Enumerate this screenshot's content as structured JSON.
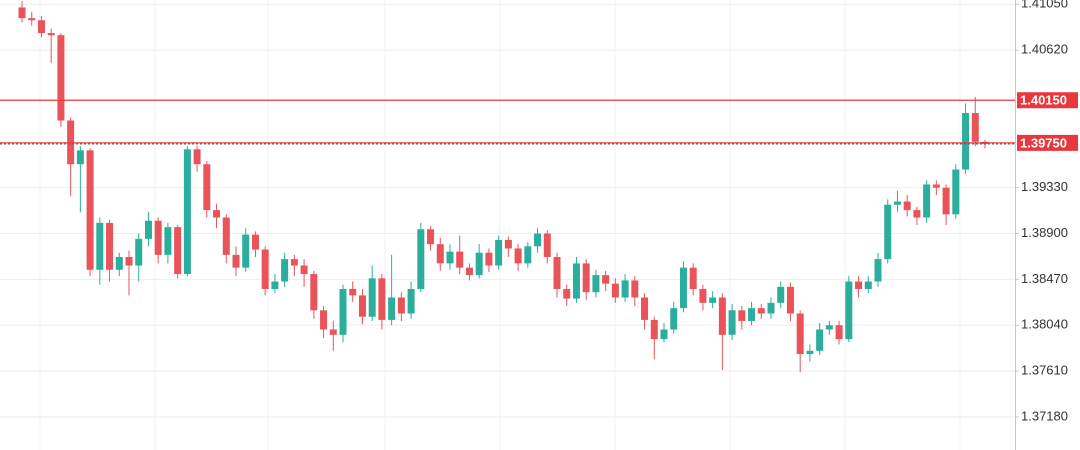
{
  "chart_data": {
    "type": "candlestick",
    "up_color": "#2bae9c",
    "down_color": "#e9545a",
    "level_color": "#e8383d",
    "grid": true,
    "ylim": [
      1.3687,
      1.4109
    ],
    "yticks": [
      {
        "value": 1.4105,
        "label": "1.41050"
      },
      {
        "value": 1.4062,
        "label": "1.40620"
      },
      {
        "value": 1.3933,
        "label": "1.39330"
      },
      {
        "value": 1.389,
        "label": "1.38900"
      },
      {
        "value": 1.3847,
        "label": "1.38470"
      },
      {
        "value": 1.3804,
        "label": "1.38040"
      },
      {
        "value": 1.3761,
        "label": "1.37610"
      },
      {
        "value": 1.3718,
        "label": "1.37180"
      }
    ],
    "levels": [
      {
        "value": 1.4015,
        "label": "1.40150"
      },
      {
        "value": 1.3975,
        "label": "1.39750"
      }
    ],
    "open": [
      1.4102,
      1.4092,
      1.409,
      1.4078,
      1.4076,
      1.3996,
      1.3955,
      1.3968,
      1.3856,
      1.39,
      1.3856,
      1.3868,
      1.386,
      1.3885,
      1.3902,
      1.387,
      1.3896,
      1.3852,
      1.3969,
      1.3955,
      1.3912,
      1.3905,
      1.387,
      1.3858,
      1.3889,
      1.3875,
      1.3838,
      1.3845,
      1.3866,
      1.386,
      1.3852,
      1.3818,
      1.38,
      1.3795,
      1.3838,
      1.3832,
      1.3812,
      1.3848,
      1.3809,
      1.383,
      1.3815,
      1.3838,
      1.3894,
      1.388,
      1.3862,
      1.3873,
      1.3858,
      1.3851,
      1.3872,
      1.386,
      1.3884,
      1.3876,
      1.3862,
      1.3878,
      1.389,
      1.3868,
      1.3838,
      1.3829,
      1.3862,
      1.3835,
      1.3851,
      1.3843,
      1.383,
      1.3846,
      1.383,
      1.3809,
      1.3791,
      1.38,
      1.382,
      1.3858,
      1.3838,
      1.3825,
      1.383,
      1.3795,
      1.3818,
      1.3808,
      1.382,
      1.3815,
      1.3825,
      1.384,
      1.3815,
      1.3777,
      1.378,
      1.38,
      1.3804,
      1.3791,
      1.3845,
      1.3838,
      1.3845,
      1.3866,
      1.3917,
      1.392,
      1.3912,
      1.3905,
      1.3936,
      1.3933,
      1.3908,
      1.395,
      1.4003,
      1.3976
    ],
    "high": [
      1.4108,
      1.4098,
      1.4094,
      1.4082,
      1.4078,
      1.3999,
      1.3972,
      1.397,
      1.3905,
      1.3903,
      1.3872,
      1.3874,
      1.389,
      1.391,
      1.3905,
      1.39,
      1.3898,
      1.3972,
      1.3972,
      1.3958,
      1.3918,
      1.3908,
      1.3878,
      1.3895,
      1.3892,
      1.3878,
      1.3852,
      1.3872,
      1.387,
      1.3866,
      1.3855,
      1.3822,
      1.3808,
      1.3842,
      1.3845,
      1.3838,
      1.386,
      1.3852,
      1.387,
      1.3835,
      1.3845,
      1.39,
      1.3897,
      1.3886,
      1.388,
      1.3888,
      1.3862,
      1.388,
      1.3876,
      1.3888,
      1.3887,
      1.388,
      1.3882,
      1.3895,
      1.3893,
      1.3872,
      1.3842,
      1.3868,
      1.3866,
      1.3856,
      1.3855,
      1.3848,
      1.3852,
      1.385,
      1.3834,
      1.3812,
      1.3806,
      1.3826,
      1.3864,
      1.3862,
      1.3842,
      1.3836,
      1.3834,
      1.3824,
      1.3822,
      1.3826,
      1.3824,
      1.383,
      1.3845,
      1.3844,
      1.3818,
      1.3786,
      1.3806,
      1.3808,
      1.3808,
      1.385,
      1.385,
      1.385,
      1.3872,
      1.3922,
      1.393,
      1.3926,
      1.3915,
      1.394,
      1.394,
      1.3936,
      1.3955,
      1.4012,
      1.4018,
      1.3978
    ],
    "low": [
      1.4088,
      1.4085,
      1.4074,
      1.405,
      1.399,
      1.3925,
      1.391,
      1.385,
      1.3842,
      1.3845,
      1.385,
      1.3832,
      1.3845,
      1.3878,
      1.3862,
      1.3862,
      1.3848,
      1.385,
      1.3948,
      1.3905,
      1.3895,
      1.3862,
      1.385,
      1.3854,
      1.3868,
      1.3832,
      1.3834,
      1.384,
      1.385,
      1.384,
      1.381,
      1.3792,
      1.378,
      1.3788,
      1.3826,
      1.3805,
      1.3808,
      1.38,
      1.3804,
      1.3808,
      1.381,
      1.3835,
      1.3874,
      1.3855,
      1.3856,
      1.3852,
      1.3846,
      1.3848,
      1.3854,
      1.3856,
      1.3868,
      1.3855,
      1.3858,
      1.3872,
      1.3862,
      1.383,
      1.3822,
      1.3825,
      1.3828,
      1.383,
      1.3836,
      1.3825,
      1.3826,
      1.3822,
      1.38,
      1.3772,
      1.3788,
      1.3796,
      1.3816,
      1.3832,
      1.3818,
      1.382,
      1.3762,
      1.379,
      1.38,
      1.3804,
      1.381,
      1.381,
      1.382,
      1.3808,
      1.376,
      1.377,
      1.3776,
      1.3795,
      1.3786,
      1.3788,
      1.383,
      1.3834,
      1.384,
      1.3862,
      1.391,
      1.3906,
      1.3898,
      1.39,
      1.3926,
      1.3898,
      1.3904,
      1.3946,
      1.3972,
      1.397
    ],
    "close": [
      1.4092,
      1.409,
      1.4078,
      1.4076,
      1.3996,
      1.3955,
      1.3968,
      1.3856,
      1.39,
      1.3856,
      1.3868,
      1.386,
      1.3885,
      1.3902,
      1.387,
      1.3896,
      1.3852,
      1.3969,
      1.3955,
      1.3912,
      1.3905,
      1.387,
      1.3858,
      1.3889,
      1.3875,
      1.3838,
      1.3845,
      1.3866,
      1.386,
      1.3852,
      1.3818,
      1.38,
      1.3795,
      1.3838,
      1.3832,
      1.3812,
      1.3848,
      1.3809,
      1.383,
      1.3815,
      1.3838,
      1.3894,
      1.388,
      1.3862,
      1.3873,
      1.3858,
      1.3851,
      1.3872,
      1.386,
      1.3884,
      1.3876,
      1.3862,
      1.3878,
      1.389,
      1.3868,
      1.3838,
      1.3829,
      1.3862,
      1.3835,
      1.3851,
      1.3843,
      1.383,
      1.3846,
      1.383,
      1.3809,
      1.3791,
      1.38,
      1.382,
      1.3858,
      1.3838,
      1.3825,
      1.383,
      1.3795,
      1.3818,
      1.3808,
      1.382,
      1.3815,
      1.3825,
      1.384,
      1.3815,
      1.3777,
      1.378,
      1.38,
      1.3804,
      1.3791,
      1.3845,
      1.3838,
      1.3845,
      1.3866,
      1.3917,
      1.392,
      1.3912,
      1.3905,
      1.3936,
      1.3933,
      1.3908,
      1.395,
      1.4003,
      1.3976,
      1.3974
    ]
  }
}
